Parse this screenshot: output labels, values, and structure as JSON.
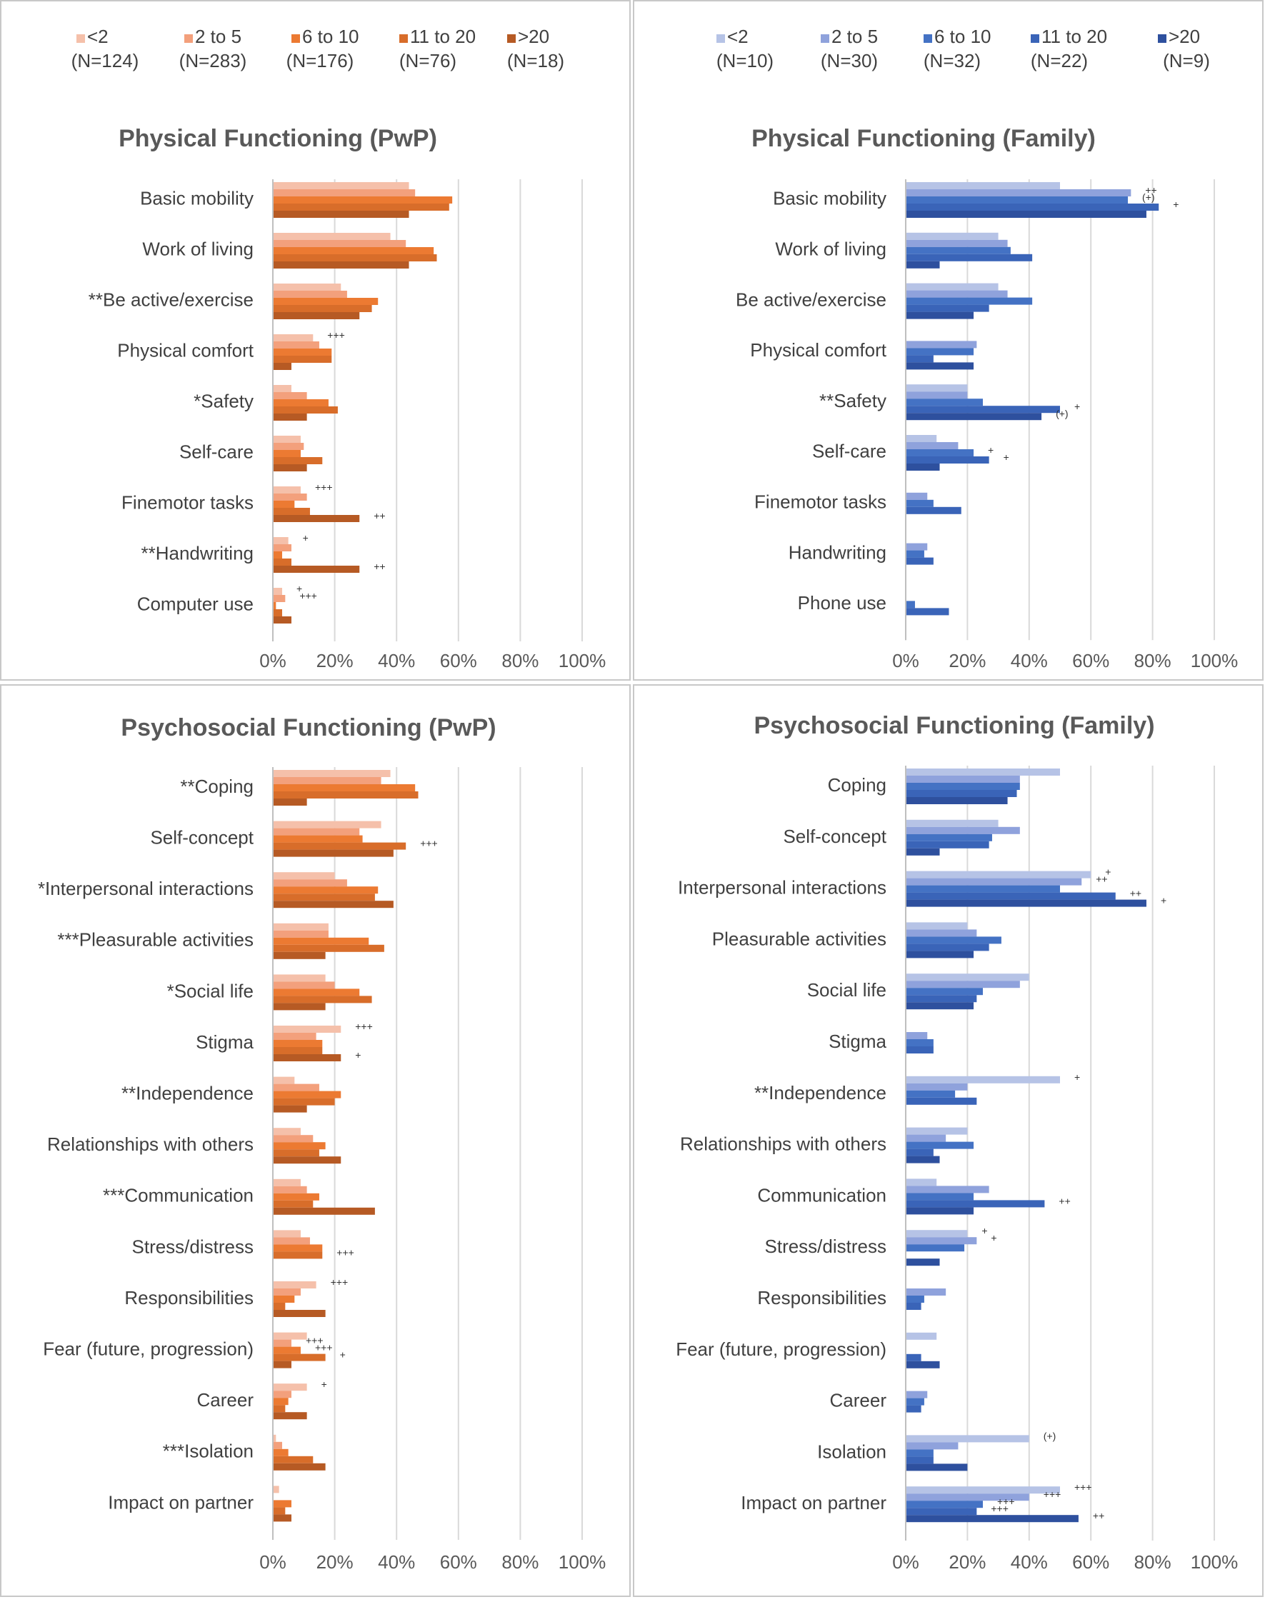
{
  "legends": {
    "pwp": {
      "entries": [
        {
          "name": "<2",
          "n": "(N=124)"
        },
        {
          "name": "2 to 5",
          "n": "(N=283)"
        },
        {
          "name": "6 to 10",
          "n": "(N=176)"
        },
        {
          "name": "11 to 20",
          "n": "(N=76)"
        },
        {
          "name": ">20",
          "n": "(N=18)"
        }
      ],
      "colors": [
        "#f5c0aa",
        "#f3a07c",
        "#ec7a32",
        "#d86d2a",
        "#b65a24"
      ]
    },
    "family": {
      "entries": [
        {
          "name": "<2",
          "n": "(N=10)"
        },
        {
          "name": "2 to 5",
          "n": "(N=30)"
        },
        {
          "name": "6 to 10",
          "n": "(N=32)"
        },
        {
          "name": "11 to 20",
          "n": "(N=22)"
        },
        {
          "name": ">20",
          "n": "(N=9)"
        }
      ],
      "colors": [
        "#b6c3e6",
        "#8fa2dc",
        "#4472c4",
        "#3a64b8",
        "#2e509e"
      ]
    }
  },
  "chart_data": [
    {
      "type": "bar",
      "orientation": "horizontal",
      "title": "Physical Functioning (PwP)",
      "palette": "pwp",
      "xlim": [
        0,
        100
      ],
      "xticks": [
        "0%",
        "20%",
        "40%",
        "60%",
        "80%",
        "100%"
      ],
      "categories": [
        "Basic mobility",
        "Work of living",
        "**Be active/exercise",
        "Physical comfort",
        "*Safety",
        "Self-care",
        "Finemotor tasks",
        "**Handwriting",
        "Computer use"
      ],
      "series": [
        {
          "name": "<2",
          "values": [
            44,
            38,
            22,
            13,
            6,
            9,
            9,
            5,
            3
          ]
        },
        {
          "name": "2 to 5",
          "values": [
            46,
            43,
            24,
            15,
            11,
            10,
            11,
            6,
            4
          ]
        },
        {
          "name": "6 to 10",
          "values": [
            58,
            52,
            34,
            19,
            18,
            9,
            7,
            3,
            1
          ]
        },
        {
          "name": "11 to 20",
          "values": [
            57,
            53,
            32,
            19,
            21,
            16,
            12,
            6,
            3
          ]
        },
        {
          "name": ">20",
          "values": [
            44,
            44,
            28,
            6,
            11,
            11,
            28,
            28,
            6
          ]
        }
      ],
      "annotations": [
        {
          "category": 3,
          "series": 0,
          "text": "+++"
        },
        {
          "category": 6,
          "series": 0,
          "text": "+++"
        },
        {
          "category": 6,
          "series": 4,
          "text": "++"
        },
        {
          "category": 7,
          "series": 0,
          "text": "+"
        },
        {
          "category": 7,
          "series": 4,
          "text": "++"
        },
        {
          "category": 8,
          "series": 0,
          "text": "+"
        },
        {
          "category": 8,
          "series": 1,
          "text": "+++"
        }
      ]
    },
    {
      "type": "bar",
      "orientation": "horizontal",
      "title": "Physical Functioning (Family)",
      "palette": "family",
      "xlim": [
        0,
        100
      ],
      "xticks": [
        "0%",
        "20%",
        "40%",
        "60%",
        "80%",
        "100%"
      ],
      "categories": [
        "Basic mobility",
        "Work of living",
        "Be active/exercise",
        "Physical comfort",
        "**Safety",
        "Self-care",
        "Finemotor tasks",
        "Handwriting",
        "Phone use"
      ],
      "series": [
        {
          "name": "<2",
          "values": [
            50,
            30,
            30,
            0,
            20,
            10,
            0,
            0,
            0
          ]
        },
        {
          "name": "2 to 5",
          "values": [
            73,
            33,
            33,
            23,
            20,
            17,
            7,
            7,
            0
          ]
        },
        {
          "name": "6 to 10",
          "values": [
            72,
            34,
            41,
            22,
            25,
            22,
            9,
            6,
            3
          ]
        },
        {
          "name": "11 to 20",
          "values": [
            82,
            41,
            27,
            9,
            50,
            27,
            18,
            9,
            14
          ]
        },
        {
          "name": ">20",
          "values": [
            78,
            11,
            22,
            22,
            44,
            11,
            0,
            0,
            0
          ]
        }
      ],
      "annotations": [
        {
          "category": 0,
          "series": 1,
          "text": "++"
        },
        {
          "category": 0,
          "series": 2,
          "text": "(+)"
        },
        {
          "category": 0,
          "series": 3,
          "text": "+"
        },
        {
          "category": 4,
          "series": 3,
          "text": "+"
        },
        {
          "category": 4,
          "series": 4,
          "text": "(+)"
        },
        {
          "category": 5,
          "series": 2,
          "text": "+"
        },
        {
          "category": 5,
          "series": 3,
          "text": "+"
        }
      ]
    },
    {
      "type": "bar",
      "orientation": "horizontal",
      "title": "Psychosocial Functioning (PwP)",
      "palette": "pwp",
      "xlim": [
        0,
        100
      ],
      "xticks": [
        "0%",
        "20%",
        "40%",
        "60%",
        "80%",
        "100%"
      ],
      "categories": [
        "**Coping",
        "Self-concept",
        "*Interpersonal interactions",
        "***Pleasurable activities",
        "*Social life",
        "Stigma",
        "**Independence",
        "Relationships with others",
        "***Communication",
        "Stress/distress",
        "Responsibilities",
        "Fear (future, progression)",
        "Career",
        "***Isolation",
        "Impact on partner"
      ],
      "series": [
        {
          "name": "<2",
          "values": [
            38,
            35,
            20,
            18,
            17,
            22,
            7,
            9,
            9,
            9,
            14,
            11,
            11,
            1,
            2
          ]
        },
        {
          "name": "2 to 5",
          "values": [
            35,
            28,
            24,
            18,
            20,
            14,
            15,
            13,
            11,
            12,
            9,
            6,
            6,
            3,
            0
          ]
        },
        {
          "name": "6 to 10",
          "values": [
            46,
            29,
            34,
            31,
            28,
            16,
            22,
            17,
            15,
            16,
            7,
            9,
            5,
            5,
            6
          ]
        },
        {
          "name": "11 to 20",
          "values": [
            47,
            43,
            33,
            36,
            32,
            16,
            20,
            15,
            13,
            16,
            4,
            17,
            4,
            13,
            4
          ]
        },
        {
          "name": ">20",
          "values": [
            11,
            39,
            39,
            17,
            17,
            22,
            11,
            22,
            33,
            0,
            17,
            6,
            11,
            17,
            6
          ]
        }
      ],
      "annotations": [
        {
          "category": 1,
          "series": 3,
          "text": "+++"
        },
        {
          "category": 5,
          "series": 0,
          "text": "+++"
        },
        {
          "category": 5,
          "series": 4,
          "text": "+"
        },
        {
          "category": 9,
          "series": 3,
          "text": "+++"
        },
        {
          "category": 10,
          "series": 0,
          "text": "+++"
        },
        {
          "category": 11,
          "series": 1,
          "text": "+++"
        },
        {
          "category": 11,
          "series": 2,
          "text": "+++"
        },
        {
          "category": 11,
          "series": 3,
          "text": "+"
        },
        {
          "category": 12,
          "series": 0,
          "text": "+"
        }
      ]
    },
    {
      "type": "bar",
      "orientation": "horizontal",
      "title": "Psychosocial Functioning (Family)",
      "palette": "family",
      "xlim": [
        0,
        100
      ],
      "xticks": [
        "0%",
        "20%",
        "40%",
        "60%",
        "80%",
        "100%"
      ],
      "categories": [
        "Coping",
        "Self-concept",
        "Interpersonal interactions",
        "Pleasurable activities",
        "Social life",
        "Stigma",
        "**Independence",
        "Relationships with others",
        "Communication",
        "Stress/distress",
        "Responsibilities",
        "Fear (future, progression)",
        "Career",
        "Isolation",
        "Impact on partner"
      ],
      "series": [
        {
          "name": "<2",
          "values": [
            50,
            30,
            60,
            20,
            40,
            0,
            50,
            20,
            10,
            20,
            0,
            10,
            0,
            40,
            50
          ]
        },
        {
          "name": "2 to 5",
          "values": [
            37,
            37,
            57,
            23,
            37,
            7,
            20,
            13,
            27,
            23,
            13,
            0,
            7,
            17,
            40
          ]
        },
        {
          "name": "6 to 10",
          "values": [
            37,
            28,
            50,
            31,
            25,
            9,
            16,
            22,
            22,
            19,
            6,
            0,
            6,
            9,
            25
          ]
        },
        {
          "name": "11 to 20",
          "values": [
            36,
            27,
            68,
            27,
            23,
            9,
            23,
            9,
            45,
            0,
            5,
            5,
            5,
            9,
            23
          ]
        },
        {
          "name": ">20",
          "values": [
            33,
            11,
            78,
            22,
            22,
            0,
            0,
            11,
            22,
            11,
            0,
            11,
            0,
            20,
            56
          ]
        }
      ],
      "annotations": [
        {
          "category": 2,
          "series": 0,
          "text": "+"
        },
        {
          "category": 2,
          "series": 1,
          "text": "++"
        },
        {
          "category": 2,
          "series": 3,
          "text": "++"
        },
        {
          "category": 2,
          "series": 4,
          "text": "+"
        },
        {
          "category": 6,
          "series": 0,
          "text": "+"
        },
        {
          "category": 8,
          "series": 3,
          "text": "++"
        },
        {
          "category": 9,
          "series": 0,
          "text": "+"
        },
        {
          "category": 9,
          "series": 1,
          "text": "+"
        },
        {
          "category": 13,
          "series": 0,
          "text": "(+)"
        },
        {
          "category": 14,
          "series": 0,
          "text": "+++"
        },
        {
          "category": 14,
          "series": 1,
          "text": "+++"
        },
        {
          "category": 14,
          "series": 2,
          "text": "+++"
        },
        {
          "category": 14,
          "series": 3,
          "text": "+++"
        },
        {
          "category": 14,
          "series": 4,
          "text": "++"
        }
      ]
    }
  ]
}
